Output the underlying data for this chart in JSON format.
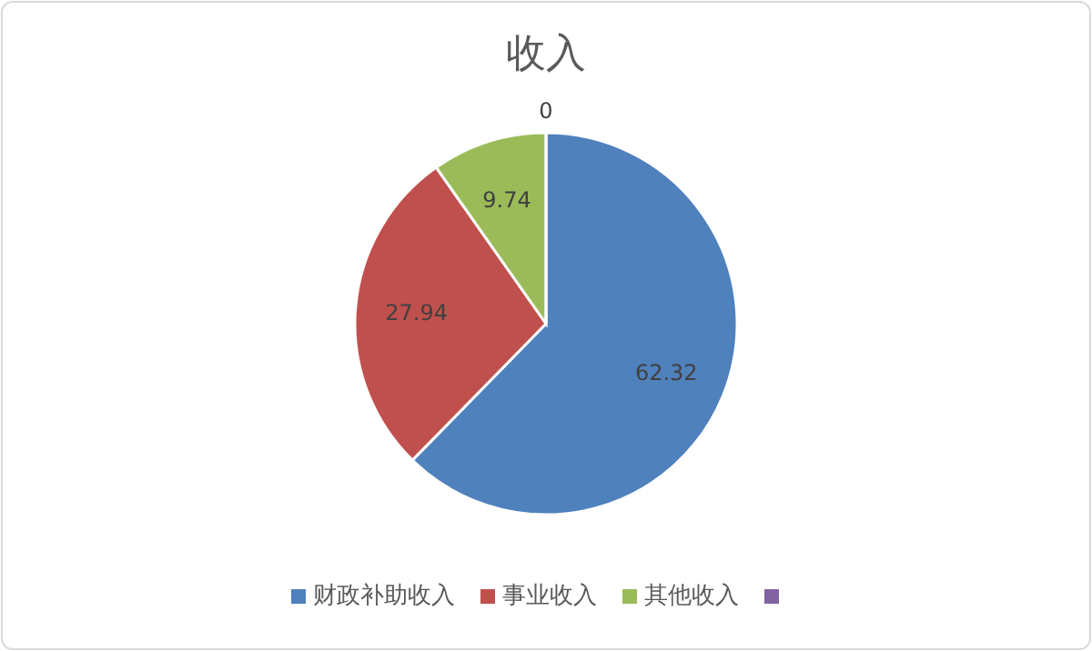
{
  "chart_data": {
    "type": "pie",
    "title": "收入",
    "categories": [
      "财政补助收入",
      "事业收入",
      "其他收入",
      null
    ],
    "values": [
      62.32,
      27.94,
      9.74,
      0
    ],
    "value_labels": [
      "62.32",
      "27.94",
      "9.74",
      "0"
    ],
    "colors": [
      "#4f81bd",
      "#c0504d",
      "#9bbb59",
      "#8064a2"
    ],
    "legend": "bottom"
  }
}
